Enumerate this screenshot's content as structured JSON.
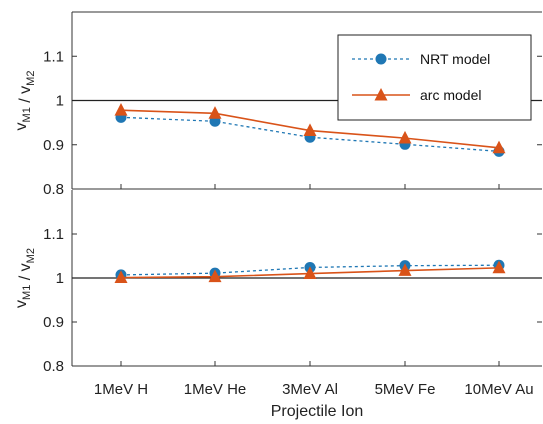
{
  "chart_data": [
    {
      "type": "line",
      "categories": [
        "1MeV H",
        "1MeV He",
        "3MeV Al",
        "5MeV Fe",
        "10MeV Au"
      ],
      "ylabel": {
        "base": "v",
        "sub1": "M1",
        "sep": " / ",
        "base2": "v",
        "sub2": "M2"
      },
      "ylim": [
        0.8,
        1.2
      ],
      "yticks": [
        "0.8",
        "0.9",
        "1",
        "1.1"
      ],
      "ytick_values": [
        0.8,
        0.9,
        1.0,
        1.1
      ],
      "reference_line": 1.0,
      "grid": false,
      "legend_position": "top-right",
      "series": [
        {
          "name": "NRT model",
          "values": [
            0.962,
            0.953,
            0.917,
            0.901,
            0.885
          ],
          "color": "#1f77b4",
          "marker": "circle",
          "line": "dashed"
        },
        {
          "name": "arc model",
          "values": [
            0.978,
            0.971,
            0.932,
            0.915,
            0.893
          ],
          "color": "#d95319",
          "marker": "triangle",
          "line": "solid"
        }
      ]
    },
    {
      "type": "line",
      "categories": [
        "1MeV H",
        "1MeV He",
        "3MeV Al",
        "5MeV Fe",
        "10MeV Au"
      ],
      "xlabel": "Projectile Ion",
      "ylabel": {
        "base": "v",
        "sub1": "M1",
        "sep": " / ",
        "base2": "v",
        "sub2": "M2"
      },
      "ylim": [
        0.8,
        1.2
      ],
      "yticks": [
        "0.8",
        "0.9",
        "1",
        "1.1"
      ],
      "ytick_values": [
        0.8,
        0.9,
        1.0,
        1.1
      ],
      "reference_line": 1.0,
      "grid": false,
      "series": [
        {
          "name": "NRT model",
          "values": [
            1.007,
            1.011,
            1.024,
            1.028,
            1.029
          ],
          "color": "#1f77b4",
          "marker": "circle",
          "line": "dashed"
        },
        {
          "name": "arc model",
          "values": [
            1.001,
            1.003,
            1.01,
            1.017,
            1.023
          ],
          "color": "#d95319",
          "marker": "triangle",
          "line": "solid"
        }
      ]
    }
  ]
}
